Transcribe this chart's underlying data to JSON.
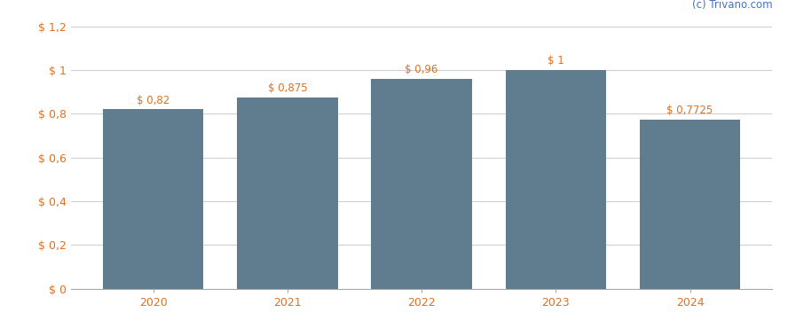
{
  "categories": [
    "2020",
    "2021",
    "2022",
    "2023",
    "2024"
  ],
  "values": [
    0.82,
    0.875,
    0.96,
    1.0,
    0.7725
  ],
  "bar_labels": [
    "$ 0,82",
    "$ 0,875",
    "$ 0,96",
    "$ 1",
    "$ 0,7725"
  ],
  "bar_color": "#5f7d8e",
  "background_color": "#ffffff",
  "ylim": [
    0,
    1.2
  ],
  "yticks": [
    0,
    0.2,
    0.4,
    0.6,
    0.8,
    1.0,
    1.2
  ],
  "ytick_labels": [
    "$ 0",
    "$ 0,2",
    "$ 0,4",
    "$ 0,6",
    "$ 0,8",
    "$ 1",
    "$ 1,2"
  ],
  "watermark": "(c) Trivano.com",
  "grid_color": "#d0d0d0",
  "label_fontsize": 8.5,
  "tick_fontsize": 9,
  "watermark_fontsize": 8.5,
  "bar_width": 0.75,
  "tick_color": "#e07020"
}
